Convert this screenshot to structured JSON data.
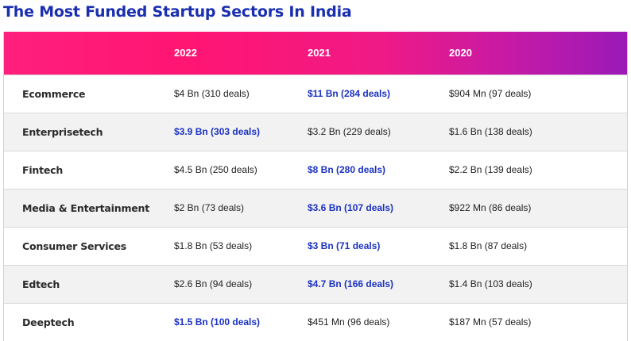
{
  "title": "The Most Funded Startup Sectors In India",
  "header": {
    "col_2022": "2022",
    "col_2021": "2021",
    "col_2020": "2020"
  },
  "colors": {
    "title": "#1a2fb0",
    "highlight": "#1b32c2",
    "header_gradient_start": "#ff1f7d",
    "header_gradient_end": "#9a1ab8"
  },
  "rows": [
    {
      "sector": "Ecommerce",
      "y2022": "$4 Bn  (310 deals)",
      "y2021": "$11 Bn (284 deals)",
      "y2020": "$904 Mn (97 deals)",
      "highlight": "2021"
    },
    {
      "sector": "Enterprisetech",
      "y2022": "$3.9 Bn (303 deals)",
      "y2021": "$3.2 Bn (229 deals)",
      "y2020": "$1.6 Bn (138 deals)",
      "highlight": "2022"
    },
    {
      "sector": "Fintech",
      "y2022": "$4.5 Bn (250 deals)",
      "y2021": "$8 Bn (280 deals)",
      "y2020": "$2.2 Bn (139 deals)",
      "highlight": "2021"
    },
    {
      "sector": "Media & Entertainment",
      "y2022": "$2 Bn (73 deals)",
      "y2021": "$3.6 Bn (107 deals)",
      "y2020": "$922 Mn (86 deals)",
      "highlight": "2021"
    },
    {
      "sector": "Consumer Services",
      "y2022": "$1.8 Bn (53 deals)",
      "y2021": "$3 Bn (71 deals)",
      "y2020": "$1.8 Bn (87 deals)",
      "highlight": "2021"
    },
    {
      "sector": "Edtech",
      "y2022": "$2.6 Bn (94 deals)",
      "y2021": "$4.7 Bn (166 deals)",
      "y2020": "$1.4 Bn (103 deals)",
      "highlight": "2021"
    },
    {
      "sector": "Deeptech",
      "y2022": "$1.5 Bn (100 deals)",
      "y2021": "$451 Mn (96 deals)",
      "y2020": "$187 Mn (57 deals)",
      "highlight": "2022"
    }
  ]
}
